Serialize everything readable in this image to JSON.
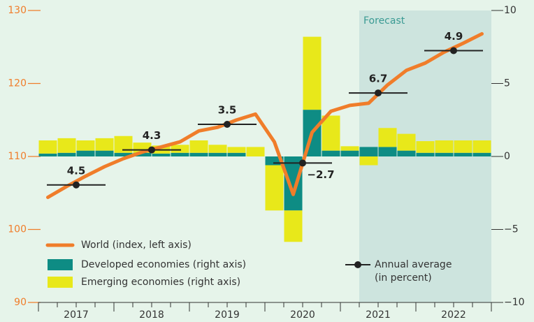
{
  "chart_data": {
    "type": "bar-line",
    "categories": [
      null,
      null,
      null,
      null,
      null,
      null,
      null,
      null,
      null,
      null,
      null,
      null,
      null,
      null,
      null,
      null,
      null,
      null,
      null,
      null,
      null,
      null,
      null,
      null
    ],
    "years": [
      2017,
      2018,
      2019,
      2020,
      2021,
      2022
    ],
    "series": [
      {
        "name": "World (index, left axis)",
        "kind": "line",
        "color": "#f07d2a",
        "values": [
          104.4,
          105.9,
          107.3,
          108.6,
          109.7,
          110.6,
          111.3,
          112.0,
          113.5,
          114.0,
          115.0,
          115.8,
          112.0,
          104.8,
          113.3,
          116.2,
          117.0,
          117.3,
          119.8,
          121.8,
          122.8,
          124.3,
          125.5,
          126.8
        ]
      },
      {
        "name": "Developed economies (right axis)",
        "kind": "bar",
        "axis": "y2",
        "color": "#0e8c84",
        "values": [
          0.2,
          0.25,
          0.4,
          0.4,
          0.25,
          0.25,
          0.2,
          0.25,
          0.25,
          0.25,
          0.25,
          0,
          -0.6,
          -3.7,
          3.2,
          0.4,
          0.4,
          0.65,
          0.65,
          0.4,
          0.25,
          0.25,
          0.25,
          0.25
        ]
      },
      {
        "name": "Emerging economies (right axis)",
        "kind": "bar",
        "axis": "y2",
        "color": "#e8e81a",
        "values": [
          0.9,
          1.0,
          0.7,
          0.85,
          1.15,
          0.7,
          0.55,
          0.55,
          0.85,
          0.55,
          0.4,
          0.65,
          -3.1,
          -2.15,
          5.0,
          2.4,
          0.3,
          -0.6,
          1.3,
          1.15,
          0.8,
          0.85,
          0.85,
          0.85
        ]
      }
    ],
    "annual_average": {
      "name_lines": [
        "Annual average",
        "(in percent)"
      ],
      "color": "#222222",
      "values": [
        106.1,
        110.9,
        114.4,
        109.1,
        118.7,
        124.5
      ],
      "growth": [
        4.5,
        4.3,
        3.5,
        -2.7,
        6.7,
        4.9
      ],
      "value_labels": [
        "4.5",
        "4.3",
        "3.5",
        "−2.7",
        "6.7",
        "4.9"
      ]
    },
    "forecast": {
      "label": "Forecast",
      "from_category": 17
    },
    "ylim": [
      90,
      130
    ],
    "yticks": [
      90,
      100,
      110,
      120,
      130
    ],
    "y2lim": [
      -10,
      10
    ],
    "y2ticks": [
      {
        "value": -10,
        "label": "−10"
      },
      {
        "value": -5,
        "label": "−5"
      },
      0,
      5,
      10
    ]
  }
}
